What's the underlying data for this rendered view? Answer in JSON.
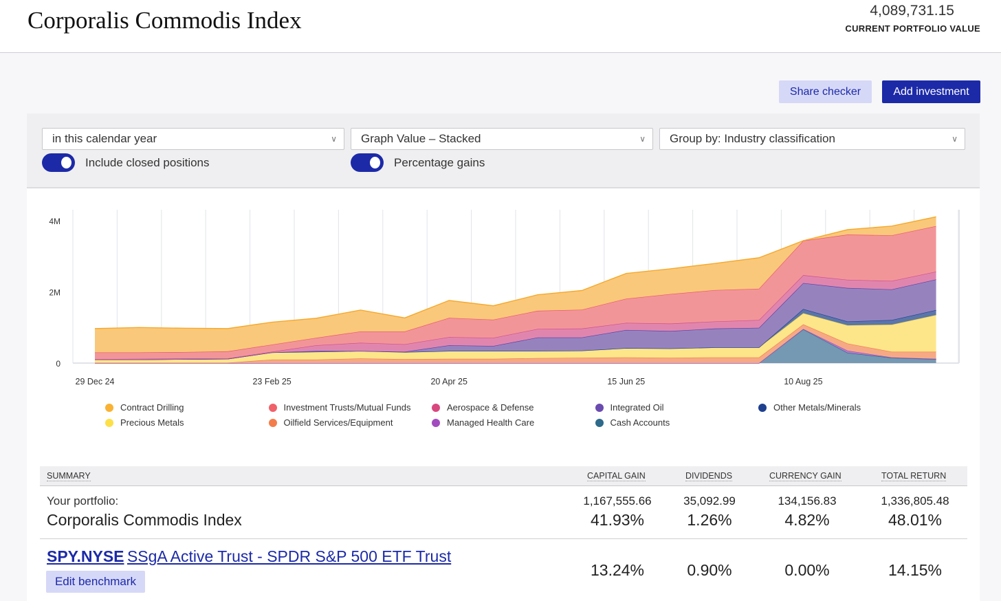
{
  "header": {
    "title": "Corporalis Commodis Index",
    "portfolio_value": "4,089,731.15",
    "portfolio_value_label": "CURRENT PORTFOLIO VALUE"
  },
  "actions": {
    "share_checker": "Share checker",
    "add_investment": "Add investment"
  },
  "filters": {
    "period": "in this calendar year",
    "graph_mode": "Graph Value – Stacked",
    "group_by": "Group by: Industry classification",
    "include_closed": {
      "label": "Include closed positions",
      "on": true
    },
    "percentage_gains": {
      "label": "Percentage gains",
      "on": true
    }
  },
  "chart_data": {
    "type": "area",
    "stacked": true,
    "x": [
      0,
      1,
      2,
      3,
      4,
      5,
      6,
      7,
      8,
      9,
      10,
      11,
      12,
      13,
      14,
      15,
      16,
      17,
      18,
      19
    ],
    "x_unit": "fortnight index from 29 Dec 24",
    "xticks": [
      {
        "at": 0,
        "label": "29 Dec 24"
      },
      {
        "at": 4,
        "label": "23 Feb 25"
      },
      {
        "at": 8,
        "label": "20 Apr 25"
      },
      {
        "at": 12,
        "label": "15 Jun 25"
      },
      {
        "at": 16,
        "label": "10 Aug 25"
      }
    ],
    "yticks": [
      {
        "at": 0,
        "label": "0"
      },
      {
        "at": 2,
        "label": "2M"
      },
      {
        "at": 4,
        "label": "4M"
      }
    ],
    "ylim": [
      0,
      4.3
    ],
    "y_unit": "millions",
    "grid": "vertical",
    "legend_position": "bottom",
    "series": [
      {
        "name": "Cash Accounts",
        "color": "#2d6a8b",
        "fill": "#7598b3",
        "values": [
          0,
          0,
          0,
          0,
          0,
          0,
          0,
          0,
          0,
          0,
          0,
          0,
          0,
          0,
          0,
          0,
          0.95,
          0.29,
          0.15,
          0.11
        ]
      },
      {
        "name": "Managed Health Care",
        "color": "#a24bbf",
        "fill": "#b77ccc",
        "values": [
          0,
          0,
          0,
          0,
          0,
          0,
          0,
          0,
          0,
          0,
          0,
          0,
          0,
          0,
          0,
          0,
          0.01,
          0.06,
          0.01,
          0.01
        ]
      },
      {
        "name": "Oilfield Services/Equipment",
        "color": "#f37d4a",
        "fill": "#f6a985",
        "values": [
          0.01,
          0.01,
          0.01,
          0.01,
          0.1,
          0.1,
          0.13,
          0.11,
          0.12,
          0.12,
          0.14,
          0.15,
          0.16,
          0.15,
          0.16,
          0.16,
          0.13,
          0.2,
          0.16,
          0.2
        ]
      },
      {
        "name": "Precious Metals",
        "color": "#f5d442",
        "fill": "#fde68a",
        "values": [
          0.09,
          0.09,
          0.1,
          0.11,
          0.2,
          0.22,
          0.21,
          0.2,
          0.22,
          0.22,
          0.2,
          0.2,
          0.26,
          0.26,
          0.28,
          0.28,
          0.31,
          0.51,
          0.76,
          1.03
        ]
      },
      {
        "name": "Other Metals/Minerals",
        "color": "#1f3f8f",
        "fill": "#5b76a8",
        "values": [
          0,
          0,
          0,
          0,
          0,
          0,
          0,
          0,
          0,
          0,
          0,
          0,
          0,
          0,
          0,
          0,
          0.12,
          0.11,
          0.13,
          0.14
        ]
      },
      {
        "name": "Integrated Oil",
        "color": "#5b3fa8",
        "fill": "#9683be",
        "values": [
          0,
          0,
          0,
          0,
          0,
          0.02,
          0,
          0.01,
          0.16,
          0.14,
          0.38,
          0.37,
          0.51,
          0.49,
          0.53,
          0.55,
          0.73,
          0.94,
          0.86,
          0.86
        ]
      },
      {
        "name": "Aerospace & Defense",
        "color": "#d04f8a",
        "fill": "#e086ae",
        "values": [
          0.01,
          0.02,
          0.02,
          0.01,
          0.02,
          0.16,
          0.23,
          0.21,
          0.23,
          0.23,
          0.24,
          0.25,
          0.2,
          0.21,
          0.2,
          0.22,
          0.22,
          0.23,
          0.24,
          0.22
        ]
      },
      {
        "name": "Investment Trusts/Mutual Funds",
        "color": "#e8566a",
        "fill": "#f29599",
        "values": [
          0.19,
          0.18,
          0.18,
          0.2,
          0.2,
          0.21,
          0.32,
          0.36,
          0.54,
          0.51,
          0.51,
          0.53,
          0.68,
          0.83,
          0.88,
          0.88,
          0.97,
          1.27,
          1.28,
          1.28
        ]
      },
      {
        "name": "Contract Drilling",
        "color": "#f5a623",
        "fill": "#fac87a",
        "values": [
          0.67,
          0.7,
          0.67,
          0.64,
          0.63,
          0.55,
          0.6,
          0.38,
          0.49,
          0.39,
          0.45,
          0.54,
          0.71,
          0.71,
          0.75,
          0.87,
          0,
          0.14,
          0.26,
          0.26
        ]
      }
    ],
    "legend": [
      {
        "name": "Contract Drilling",
        "color": "#f9b233"
      },
      {
        "name": "Precious Metals",
        "color": "#fde047"
      },
      {
        "name": "Investment Trusts/Mutual Funds",
        "color": "#f0616a"
      },
      {
        "name": "Oilfield Services/Equipment",
        "color": "#f37d4a"
      },
      {
        "name": "Aerospace & Defense",
        "color": "#d9477f"
      },
      {
        "name": "Managed Health Care",
        "color": "#a24bbf"
      },
      {
        "name": "Integrated Oil",
        "color": "#6a4bb0"
      },
      {
        "name": "Cash Accounts",
        "color": "#2d6a8b"
      },
      {
        "name": "Other Metals/Minerals",
        "color": "#1f3f8f"
      }
    ]
  },
  "summary": {
    "headers": {
      "summary": "SUMMARY",
      "capital_gain": "CAPITAL GAIN",
      "dividends": "DIVIDENDS",
      "currency_gain": "CURRENCY GAIN",
      "total_return": "TOTAL RETURN"
    },
    "portfolio": {
      "label": "Your portfolio:",
      "name": "Corporalis Commodis Index",
      "values": [
        "1,167,555.66",
        "35,092.99",
        "134,156.83",
        "1,336,805.48"
      ],
      "percents": [
        "41.93%",
        "1.26%",
        "4.82%",
        "48.01%"
      ]
    },
    "benchmark": {
      "ticker": "SPY.NYSE",
      "name": "SSgA Active Trust - SPDR S&P 500 ETF Trust",
      "percents": [
        "13.24%",
        "0.90%",
        "0.00%",
        "14.15%"
      ],
      "edit_label": "Edit benchmark"
    }
  }
}
